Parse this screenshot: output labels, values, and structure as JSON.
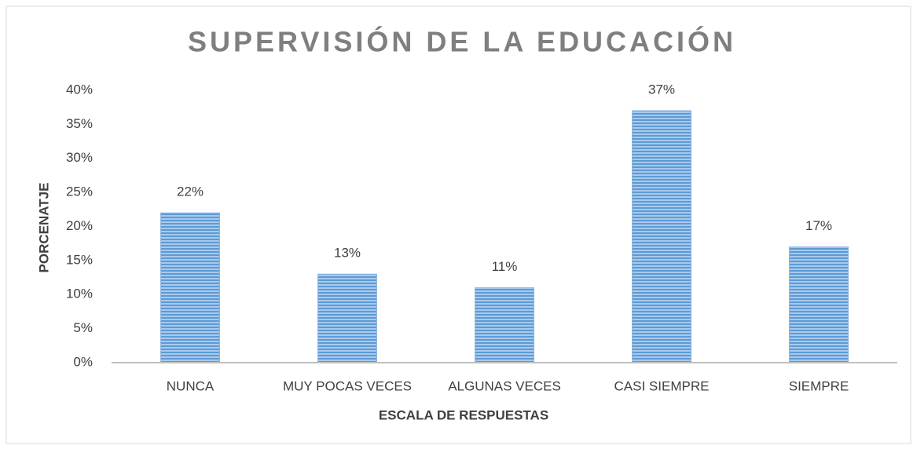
{
  "chart_data": {
    "type": "bar",
    "title": "SUPERVISIÓN DE LA EDUCACIÓN",
    "x_label": "ESCALA DE RESPUESTAS",
    "y_label": "PORCENATJE",
    "categories": [
      "NUNCA",
      "MUY POCAS VECES",
      "ALGUNAS VECES",
      "CASI SIEMPRE",
      "SIEMPRE"
    ],
    "values": [
      22,
      13,
      11,
      37,
      17
    ],
    "value_labels": [
      "22%",
      "13%",
      "11%",
      "37%",
      "17%"
    ],
    "color": "#5b9bd5",
    "ylim": [
      0,
      40
    ],
    "yticks": [
      {
        "value": 0,
        "label": "0%"
      },
      {
        "value": 5,
        "label": "5%"
      },
      {
        "value": 10,
        "label": "10%"
      },
      {
        "value": 15,
        "label": "15%"
      },
      {
        "value": 20,
        "label": "20%"
      },
      {
        "value": 25,
        "label": "25%"
      },
      {
        "value": 30,
        "label": "30%"
      },
      {
        "value": 35,
        "label": "35%"
      },
      {
        "value": 40,
        "label": "40%"
      }
    ],
    "grid": false
  }
}
